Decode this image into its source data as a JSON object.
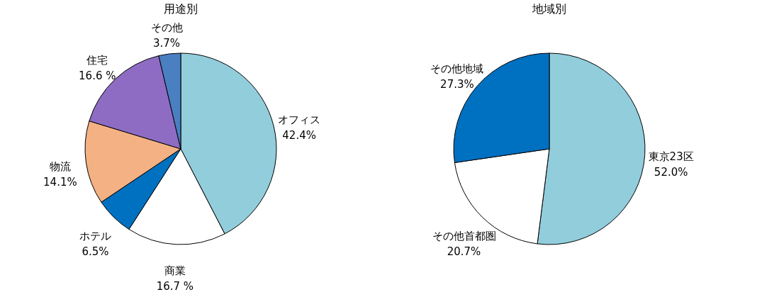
{
  "chart_data": [
    {
      "type": "pie",
      "title": "用途別",
      "categories": [
        "オフィス",
        "商業",
        "ホテル",
        "物流",
        "住宅",
        "その他"
      ],
      "values": [
        42.4,
        16.7,
        6.5,
        14.1,
        16.6,
        3.7
      ],
      "colors": [
        "#92cddc",
        "#ffffff",
        "#0070c0",
        "#f4b183",
        "#8e6cc4",
        "#4a7fc1"
      ],
      "value_labels": [
        "42.4%",
        "16.7 %",
        "6.5%",
        "14.1%",
        "16.6 %",
        "3.7%"
      ]
    },
    {
      "type": "pie",
      "title": "地域別",
      "categories": [
        "東京23区",
        "その他首都圏",
        "その他地域"
      ],
      "values": [
        52.0,
        20.7,
        27.3
      ],
      "colors": [
        "#92cddc",
        "#ffffff",
        "#0070c0"
      ],
      "value_labels": [
        "52.0%",
        "20.7%",
        "27.3%"
      ]
    }
  ]
}
